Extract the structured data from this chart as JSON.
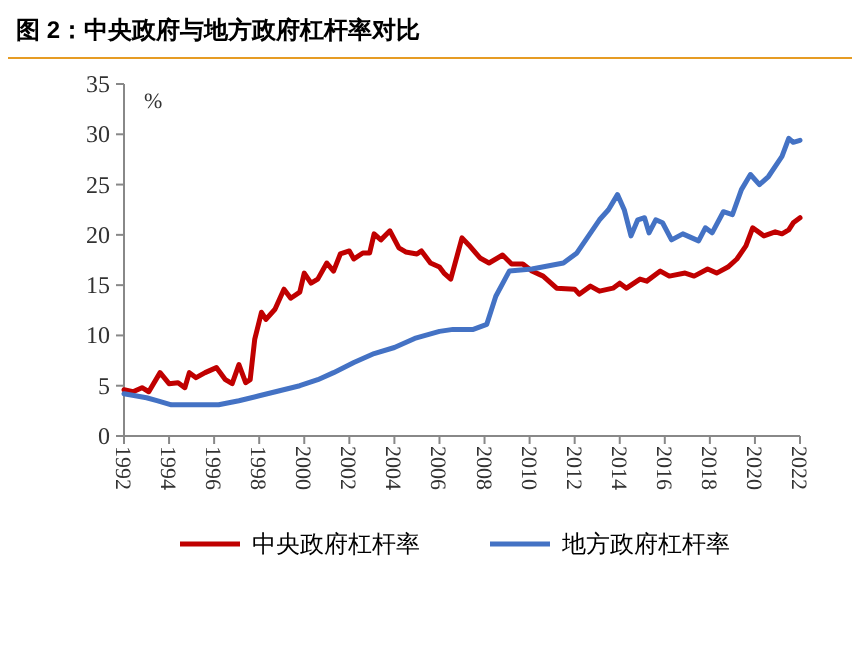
{
  "chart_data": {
    "type": "line",
    "title": "图 2：中央政府与地方政府杠杆率对比",
    "ylabel": "%",
    "xlim": [
      1992,
      2022
    ],
    "ylim": [
      0,
      35
    ],
    "xticks": [
      1992,
      1994,
      1996,
      1998,
      2000,
      2002,
      2004,
      2006,
      2008,
      2010,
      2012,
      2014,
      2016,
      2018,
      2020,
      2022
    ],
    "yticks": [
      0,
      5,
      10,
      15,
      20,
      25,
      30,
      35
    ],
    "grid": false,
    "legend": "bottom",
    "marker": "none",
    "line_style": "solid",
    "series": [
      {
        "name": "中央政府杠杆率",
        "color": "#c00000",
        "x": [
          1992,
          1992.4,
          1992.8,
          1993.1,
          1993.6,
          1994,
          1994.4,
          1994.7,
          1994.9,
          1995.2,
          1995.6,
          1996.1,
          1996.5,
          1996.8,
          1997.1,
          1997.4,
          1997.6,
          1997.8,
          1998.1,
          1998.3,
          1998.7,
          1999.1,
          1999.4,
          1999.8,
          2000,
          2000.3,
          2000.6,
          2001,
          2001.3,
          2001.6,
          2002,
          2002.2,
          2002.6,
          2002.9,
          2003.1,
          2003.4,
          2003.8,
          2004.2,
          2004.5,
          2005,
          2005.2,
          2005.6,
          2006,
          2006.2,
          2006.5,
          2007,
          2007.3,
          2007.8,
          2008.2,
          2008.8,
          2009.2,
          2009.7,
          2010.1,
          2010.6,
          2011.2,
          2012,
          2012.2,
          2012.7,
          2013.1,
          2013.7,
          2014,
          2014.3,
          2014.9,
          2015.2,
          2015.8,
          2016.2,
          2016.9,
          2017.3,
          2017.9,
          2018.3,
          2018.8,
          2019.2,
          2019.6,
          2019.9,
          2020.4,
          2020.9,
          2021.2,
          2021.5,
          2021.7,
          2022
        ],
        "values": [
          4.6,
          4.4,
          4.8,
          4.4,
          6.3,
          5.2,
          5.3,
          4.8,
          6.3,
          5.8,
          6.3,
          6.8,
          5.6,
          5.2,
          7.1,
          5.3,
          5.6,
          9.6,
          12.3,
          11.6,
          12.6,
          14.6,
          13.7,
          14.3,
          16.2,
          15.2,
          15.6,
          17.2,
          16.4,
          18.1,
          18.4,
          17.6,
          18.2,
          18.2,
          20.1,
          19.5,
          20.4,
          18.7,
          18.3,
          18.1,
          18.4,
          17.2,
          16.8,
          16.2,
          15.6,
          19.7,
          19,
          17.7,
          17.2,
          18,
          17.1,
          17.1,
          16.4,
          15.9,
          14.7,
          14.6,
          14.1,
          14.9,
          14.4,
          14.7,
          15.2,
          14.7,
          15.6,
          15.4,
          16.4,
          15.9,
          16.2,
          15.9,
          16.6,
          16.2,
          16.8,
          17.6,
          18.9,
          20.7,
          19.9,
          20.3,
          20.1,
          20.5,
          21.2,
          21.7
        ]
      },
      {
        "name": "地方政府杠杆率",
        "color": "#4472c4",
        "x": [
          1992,
          1993,
          1993.5,
          1994.1,
          1996.2,
          1997.1,
          1998,
          1998.9,
          1999.8,
          2000.6,
          2001.3,
          2002.2,
          2003.1,
          2004,
          2004.9,
          2006,
          2006.6,
          2007.5,
          2008.1,
          2008.5,
          2009.1,
          2010.1,
          2011.5,
          2012.1,
          2013.1,
          2013.5,
          2013.9,
          2014.2,
          2014.5,
          2014.8,
          2015.1,
          2015.3,
          2015.6,
          2015.9,
          2016.3,
          2016.8,
          2017.5,
          2017.8,
          2018.1,
          2018.6,
          2019,
          2019.4,
          2019.8,
          2020.2,
          2020.6,
          2021.2,
          2021.5,
          2021.7,
          2022
        ],
        "values": [
          4.2,
          3.8,
          3.5,
          3.1,
          3.1,
          3.5,
          4,
          4.5,
          5,
          5.6,
          6.3,
          7.3,
          8.2,
          8.8,
          9.7,
          10.4,
          10.6,
          10.6,
          11.1,
          13.9,
          16.4,
          16.6,
          17.2,
          18.2,
          21.5,
          22.5,
          24,
          22.5,
          19.9,
          21.5,
          21.7,
          20.2,
          21.5,
          21.2,
          19.5,
          20.1,
          19.4,
          20.7,
          20.2,
          22.3,
          22,
          24.5,
          26,
          25,
          25.8,
          27.8,
          29.6,
          29.2,
          29.4
        ]
      }
    ]
  }
}
